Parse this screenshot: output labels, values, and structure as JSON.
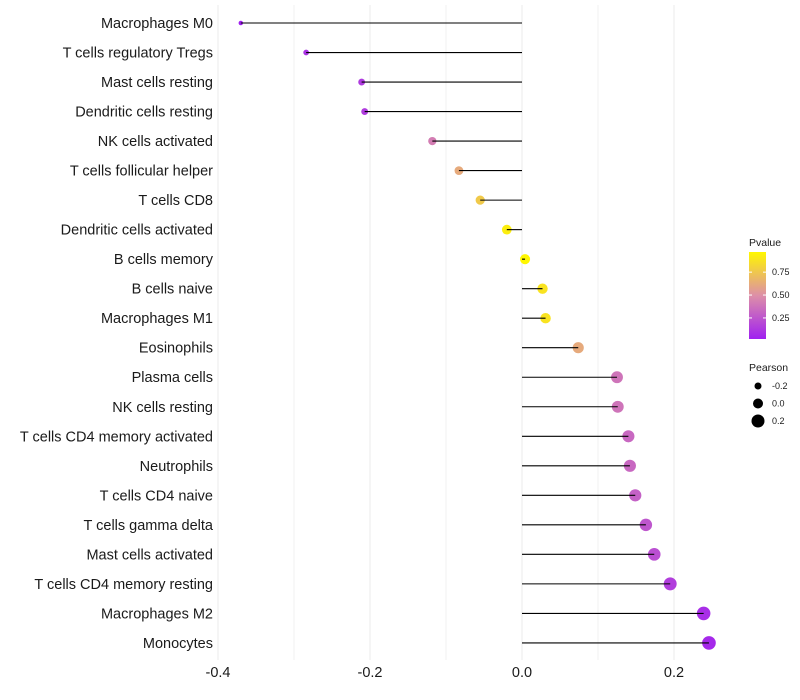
{
  "chart_data": {
    "type": "lollipop",
    "title": "",
    "xlabel": "",
    "ylabel": "",
    "xlim": [
      -0.4,
      0.26
    ],
    "xticks": [
      -0.4,
      -0.2,
      0.0,
      0.2
    ],
    "xtick_labels": [
      "-0.4",
      "-0.2",
      "0.0",
      "0.2"
    ],
    "minor_xticks": [
      -0.3,
      -0.1,
      0.1
    ],
    "grid": true,
    "categories": [
      "Macrophages M0",
      "T cells regulatory  Tregs",
      "Mast cells resting",
      "Dendritic cells resting",
      "NK cells activated",
      "T cells follicular helper",
      "T cells CD8",
      "Dendritic cells activated",
      "B cells memory",
      "B cells naive",
      "Macrophages M1",
      "Eosinophils",
      "Plasma cells",
      "NK cells resting",
      "T cells CD4 memory activated",
      "Neutrophils",
      "T cells CD4 naive",
      "T cells gamma delta",
      "Mast cells activated",
      "T cells CD4 memory resting",
      "Macrophages M2",
      "Monocytes"
    ],
    "series": [
      {
        "name": "Pearson",
        "values": [
          -0.37,
          -0.284,
          -0.211,
          -0.207,
          -0.118,
          -0.083,
          -0.055,
          -0.02,
          0.004,
          0.027,
          0.031,
          0.074,
          0.125,
          0.126,
          0.14,
          0.142,
          0.149,
          0.163,
          0.174,
          0.195,
          0.239,
          0.246
        ]
      },
      {
        "name": "Pvalue",
        "values": [
          0.02,
          0.1,
          0.13,
          0.14,
          0.42,
          0.62,
          0.76,
          0.93,
          0.97,
          0.88,
          0.88,
          0.62,
          0.38,
          0.38,
          0.33,
          0.33,
          0.3,
          0.25,
          0.22,
          0.15,
          0.08,
          0.06
        ]
      }
    ],
    "legend": {
      "placement": "right",
      "color": {
        "title": "Pvalue",
        "range": [
          0.02,
          0.97
        ],
        "ticks": [
          0.25,
          0.5,
          0.75
        ],
        "tick_labels": [
          "0.25",
          "0.50",
          "0.75"
        ],
        "low_color": "#A020F0",
        "mid_color": "#DD8FA8",
        "high_color": "#FFF700"
      },
      "size": {
        "title": "Pearson",
        "values": [
          -0.2,
          0.0,
          0.2
        ],
        "labels": [
          "-0.2",
          "0.0",
          "0.2"
        ]
      }
    },
    "segment_color": "#000000",
    "grid_color": "#ebebeb"
  }
}
